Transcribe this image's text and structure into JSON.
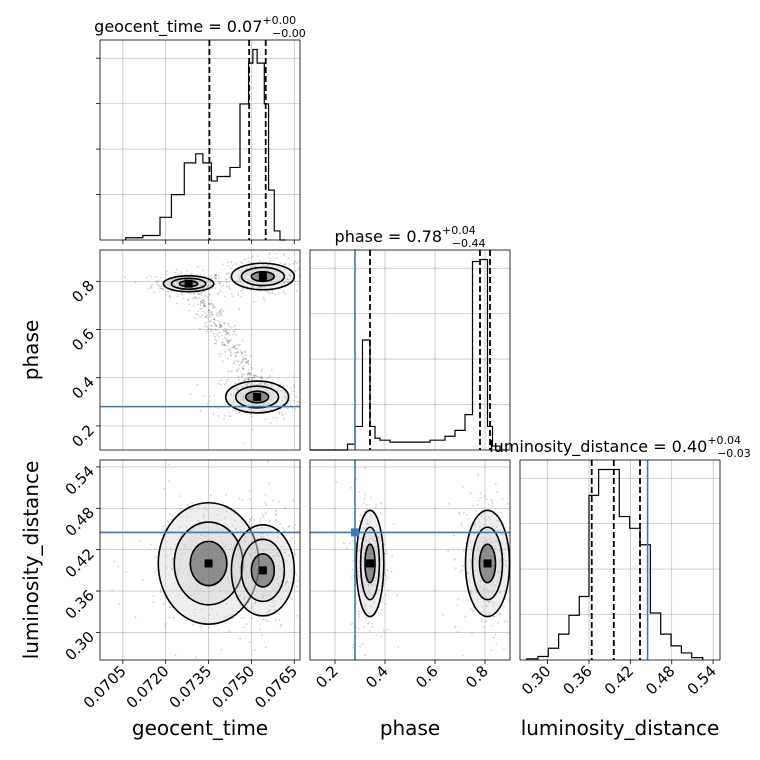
{
  "chart_data": {
    "type": "corner",
    "parameters": [
      "geocent_time",
      "phase",
      "luminosity_distance"
    ],
    "truths": {
      "geocent_time": null,
      "phase": 0.28,
      "luminosity_distance": 0.445
    },
    "colors": {
      "hist": "#000000",
      "truth": "#3d79b3",
      "grid": "#b0b0b0",
      "quantile": "#000000"
    },
    "grid": true,
    "diagonal": [
      {
        "param": "geocent_time",
        "title_main": "geocent_time = 0.07",
        "title_sup": "+0.00",
        "title_sub": "−0.00",
        "xlim": [
          0.0697,
          0.0767
        ],
        "quantiles": [
          0.07353,
          0.07492,
          0.0755
        ],
        "bin_edges": [
          0.0706,
          0.0712,
          0.0718,
          0.0722,
          0.07265,
          0.07305,
          0.0733,
          0.0736,
          0.0738,
          0.07425,
          0.0746,
          0.0749,
          0.07505,
          0.0752,
          0.07545,
          0.0756,
          0.0758,
          0.076,
          0.0762
        ],
        "counts": [
          0.5,
          1,
          5,
          10,
          17,
          19,
          17,
          13,
          14,
          16,
          30,
          39,
          42,
          39,
          30,
          11,
          2,
          0
        ]
      },
      {
        "param": "phase",
        "title_main": "phase = 0.78",
        "title_sup": "+0.04",
        "title_sub": "−0.44",
        "xlim": [
          0.1,
          0.9
        ],
        "quantiles": [
          0.34,
          0.78,
          0.82
        ],
        "truth": 0.28,
        "xticks": [
          "0.2",
          "0.4",
          "0.6",
          "0.8"
        ],
        "xtick_values": [
          0.2,
          0.4,
          0.6,
          0.8
        ],
        "bin_edges": [
          0.1,
          0.25,
          0.28,
          0.31,
          0.34,
          0.36,
          0.38,
          0.42,
          0.46,
          0.52,
          0.58,
          0.64,
          0.68,
          0.72,
          0.75,
          0.78,
          0.81,
          0.83,
          0.86,
          0.89
        ],
        "counts": [
          0,
          3,
          12,
          56,
          12,
          6,
          5,
          4,
          4,
          4,
          5,
          7,
          10,
          18,
          96,
          97,
          12,
          2,
          0
        ]
      },
      {
        "param": "luminosity_distance",
        "title_main": "luminosity_distance = 0.40",
        "title_sup": "+0.04",
        "title_sub": "−0.03",
        "xlim": [
          0.26,
          0.55
        ],
        "quantiles": [
          0.364,
          0.396,
          0.434
        ],
        "truth": 0.445,
        "xticks": [
          "0.30",
          "0.36",
          "0.42",
          "0.48",
          "0.54"
        ],
        "xtick_values": [
          0.3,
          0.36,
          0.42,
          0.48,
          0.54
        ],
        "bin_edges": [
          0.27,
          0.286,
          0.301,
          0.316,
          0.331,
          0.346,
          0.36,
          0.374,
          0.389,
          0.404,
          0.419,
          0.434,
          0.449,
          0.464,
          0.479,
          0.494,
          0.509,
          0.525
        ],
        "counts": [
          0.5,
          1.5,
          5,
          11,
          19,
          27,
          70,
          81,
          81,
          61,
          56,
          49,
          20,
          11,
          6,
          3,
          1
        ]
      }
    ],
    "panels_2d": [
      {
        "x_param": "geocent_time",
        "y_param": "phase",
        "xlim": [
          0.0697,
          0.0767
        ],
        "ylim": [
          0.1,
          0.93
        ],
        "yticks": [
          "0.2",
          "0.4",
          "0.6",
          "0.8"
        ],
        "ytick_values": [
          0.2,
          0.4,
          0.6,
          0.8
        ],
        "truth_y": 0.28,
        "clusters": [
          {
            "center": [
              0.0728,
              0.79
            ],
            "spread": [
              0.0004,
              0.015
            ]
          },
          {
            "center": [
              0.0754,
              0.82
            ],
            "spread": [
              0.0005,
              0.025
            ]
          },
          {
            "center": [
              0.0752,
              0.32
            ],
            "spread": [
              0.0005,
              0.03
            ]
          }
        ]
      },
      {
        "x_param": "geocent_time",
        "y_param": "luminosity_distance",
        "xlim": [
          0.0697,
          0.0767
        ],
        "ylim": [
          0.26,
          0.55
        ],
        "xticks": [
          "0.0705",
          "0.0720",
          "0.0735",
          "0.0750",
          "0.0765"
        ],
        "xtick_values": [
          0.0705,
          0.072,
          0.0735,
          0.075,
          0.0765
        ],
        "yticks": [
          "0.30",
          "0.36",
          "0.42",
          "0.48",
          "0.54"
        ],
        "ytick_values": [
          0.3,
          0.36,
          0.42,
          0.48,
          0.54
        ],
        "truth_y": 0.445,
        "clusters": [
          {
            "center": [
              0.0735,
              0.4
            ],
            "spread": [
              0.0008,
              0.04
            ]
          },
          {
            "center": [
              0.0754,
              0.39
            ],
            "spread": [
              0.0005,
              0.03
            ]
          }
        ]
      },
      {
        "x_param": "phase",
        "y_param": "luminosity_distance",
        "xlim": [
          0.1,
          0.9
        ],
        "ylim": [
          0.26,
          0.55
        ],
        "xticks": [
          "0.2",
          "0.4",
          "0.6",
          "0.8"
        ],
        "xtick_values": [
          0.2,
          0.4,
          0.6,
          0.8
        ],
        "truth_x": 0.28,
        "truth_y": 0.445,
        "clusters": [
          {
            "center": [
              0.34,
              0.4
            ],
            "spread": [
              0.025,
              0.035
            ]
          },
          {
            "center": [
              0.81,
              0.4
            ],
            "spread": [
              0.04,
              0.035
            ]
          }
        ]
      }
    ],
    "axis_labels": {
      "x": [
        "geocent_time",
        "phase",
        "luminosity_distance"
      ],
      "y": [
        "phase",
        "luminosity_distance"
      ]
    }
  }
}
